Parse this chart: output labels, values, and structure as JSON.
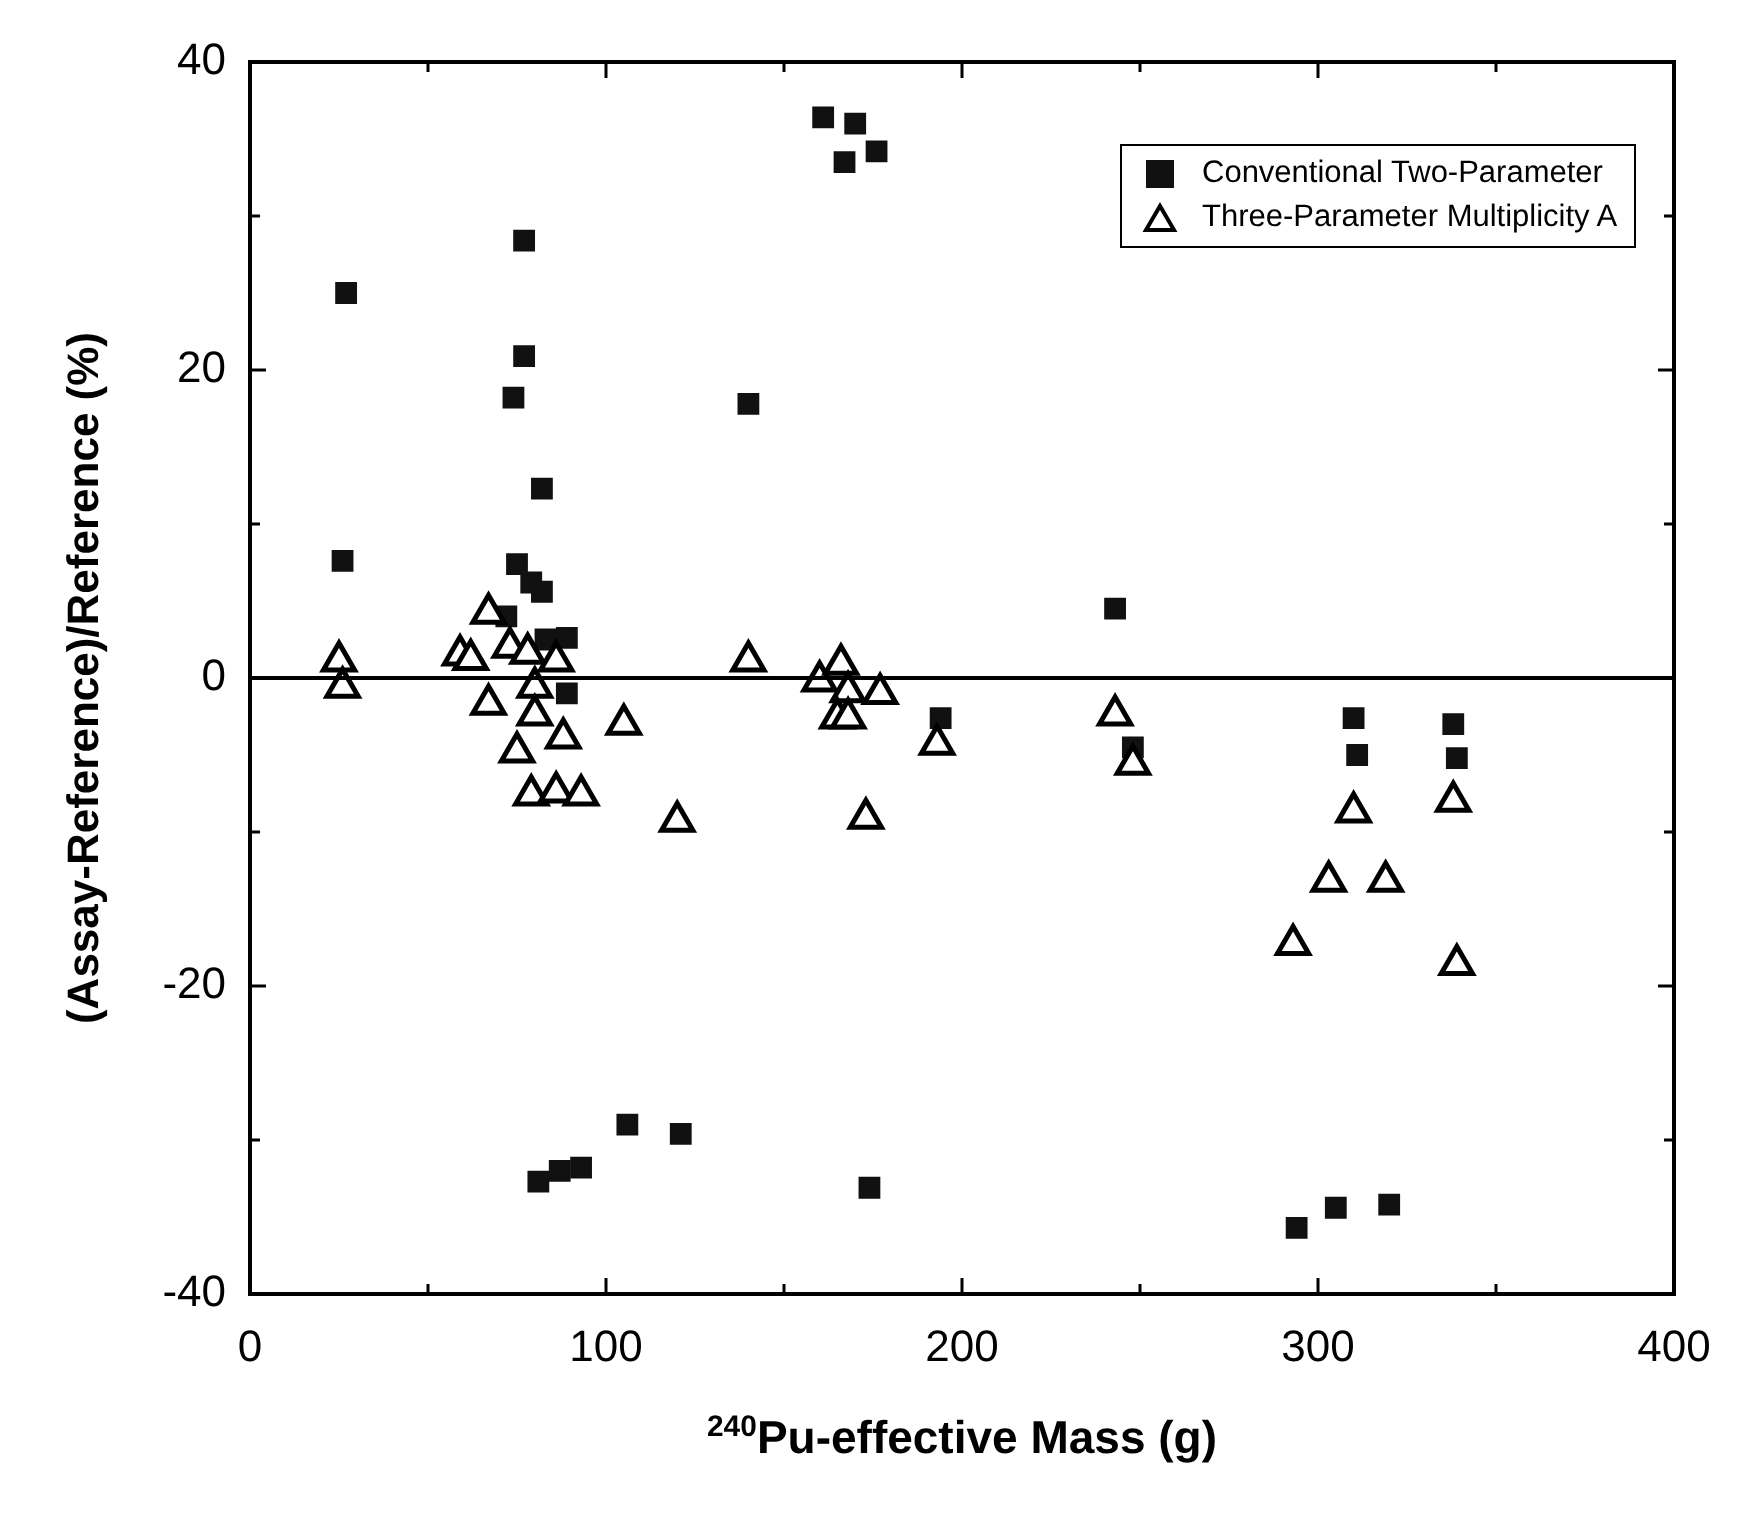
{
  "chart_data": {
    "type": "scatter",
    "xlabel": "$^{240}$Pu-effective Mass (g)",
    "ylabel": "(Assay-Reference)/Reference (%)",
    "xlim": [
      0,
      400
    ],
    "xticks": [
      0,
      {
        "value": 50,
        "label": null
      },
      100,
      {
        "value": 150,
        "label": null
      },
      200,
      {
        "value": 250,
        "label": null
      },
      300,
      {
        "value": 350,
        "label": null
      },
      400
    ],
    "ylim": [
      -40,
      40
    ],
    "yticks": [
      -40,
      {
        "value": -30,
        "label": null
      },
      -20,
      {
        "value": -10,
        "label": null
      },
      0,
      {
        "value": 10,
        "label": null
      },
      20,
      {
        "value": 30,
        "label": null
      },
      40
    ],
    "grid": false,
    "legend": "top right",
    "ref_lines": [
      {
        "axis": "y",
        "value": 0,
        "label": null,
        "color": "#000000"
      }
    ],
    "series": [
      {
        "name": "Conventional Two-Parameter",
        "color": "#111111",
        "marker": "square",
        "x": [
          27,
          77,
          77,
          74,
          82,
          26,
          75,
          79,
          82,
          72,
          83,
          89,
          89,
          161,
          170,
          176,
          167,
          140,
          194,
          106,
          121,
          81,
          87,
          93,
          174,
          243,
          248,
          310,
          311,
          338,
          339,
          294,
          305,
          320
        ],
        "values": [
          25,
          28.4,
          20.9,
          18.2,
          12.3,
          7.6,
          7.4,
          6.2,
          5.6,
          4,
          2.5,
          2.6,
          -1,
          36.4,
          36,
          34.2,
          33.5,
          17.8,
          -2.6,
          -29,
          -29.6,
          -32.7,
          -32,
          -31.8,
          -33.1,
          4.5,
          -4.5,
          -2.6,
          -5,
          -3,
          -5.2,
          -35.7,
          -34.4,
          -34.2
        ]
      },
      {
        "name": "Three-Parameter Multiplicity A",
        "color": "#000000",
        "marker": "triangle",
        "x": [
          25,
          26,
          67,
          59,
          62,
          73,
          78,
          86,
          80,
          67,
          80,
          88,
          75,
          79,
          86,
          93,
          105,
          120,
          140,
          160,
          166,
          168,
          177,
          165,
          168,
          173,
          193,
          243,
          248,
          310,
          303,
          319,
          293,
          338,
          339
        ],
        "values": [
          1.1,
          -0.6,
          4.2,
          1.5,
          1.2,
          2,
          1.6,
          1.1,
          -0.6,
          -1.7,
          -2.4,
          -3.9,
          -4.8,
          -7.6,
          -7.4,
          -7.6,
          -3,
          -9.3,
          1.1,
          -0.2,
          0.9,
          -0.9,
          -1,
          -2.6,
          -2.6,
          -9.1,
          -4.3,
          -2.4,
          -5.6,
          -8.7,
          -13.2,
          -13.2,
          -17.3,
          -8,
          -18.6
        ]
      }
    ]
  }
}
